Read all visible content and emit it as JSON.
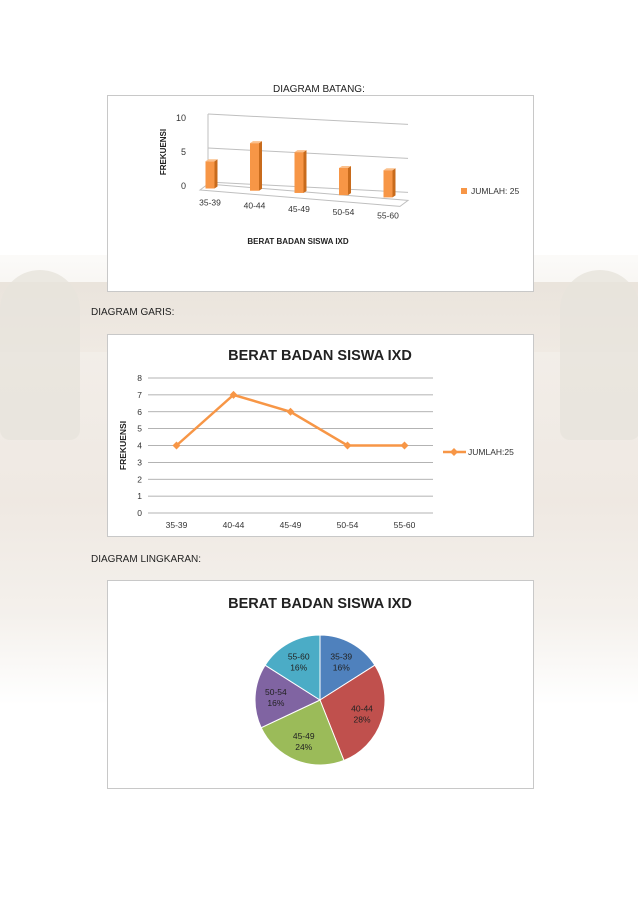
{
  "captions": {
    "bar": "DIAGRAM BATANG:",
    "line": "DIAGRAM GARIS:",
    "pie": "DIAGRAM LINGKARAN:"
  },
  "colors": {
    "orange": "#f79646",
    "orange_dark": "#c86b1c"
  },
  "chart_data": [
    {
      "type": "bar",
      "title": "",
      "categories": [
        "35-39",
        "40-44",
        "45-49",
        "50-54",
        "55-60"
      ],
      "series": [
        {
          "name": "JUMLAH: 25",
          "values": [
            4,
            7,
            6,
            4,
            4
          ]
        }
      ],
      "xlabel": "BERAT BADAN SISWA IXD",
      "ylabel": "FREKUENSI",
      "ylim": [
        0,
        10
      ],
      "yticks": [
        "0",
        "5",
        "10"
      ],
      "grid": true,
      "legend": "right"
    },
    {
      "type": "line",
      "title": "BERAT BADAN SISWA IXD",
      "categories": [
        "35-39",
        "40-44",
        "45-49",
        "50-54",
        "55-60"
      ],
      "series": [
        {
          "name": "JUMLAH:25",
          "values": [
            4,
            7,
            6,
            4,
            4
          ]
        }
      ],
      "xlabel": "",
      "ylabel": "FREKUENSI",
      "ylim": [
        0,
        8
      ],
      "yticks": [
        "0",
        "1",
        "2",
        "3",
        "4",
        "5",
        "6",
        "7",
        "8"
      ],
      "grid": true,
      "legend": "right"
    },
    {
      "type": "pie",
      "title": "BERAT BADAN SISWA IXD",
      "slices": [
        {
          "label": "35-39",
          "pct": "16%",
          "value": 16,
          "color": "#4f81bd"
        },
        {
          "label": "40-44",
          "pct": "28%",
          "value": 28,
          "color": "#c0504d"
        },
        {
          "label": "45-49",
          "pct": "24%",
          "value": 24,
          "color": "#9bbb59"
        },
        {
          "label": "50-54",
          "pct": "16%",
          "value": 16,
          "color": "#8064a2"
        },
        {
          "label": "55-60",
          "pct": "16%",
          "value": 16,
          "color": "#4bacc6"
        }
      ]
    }
  ]
}
